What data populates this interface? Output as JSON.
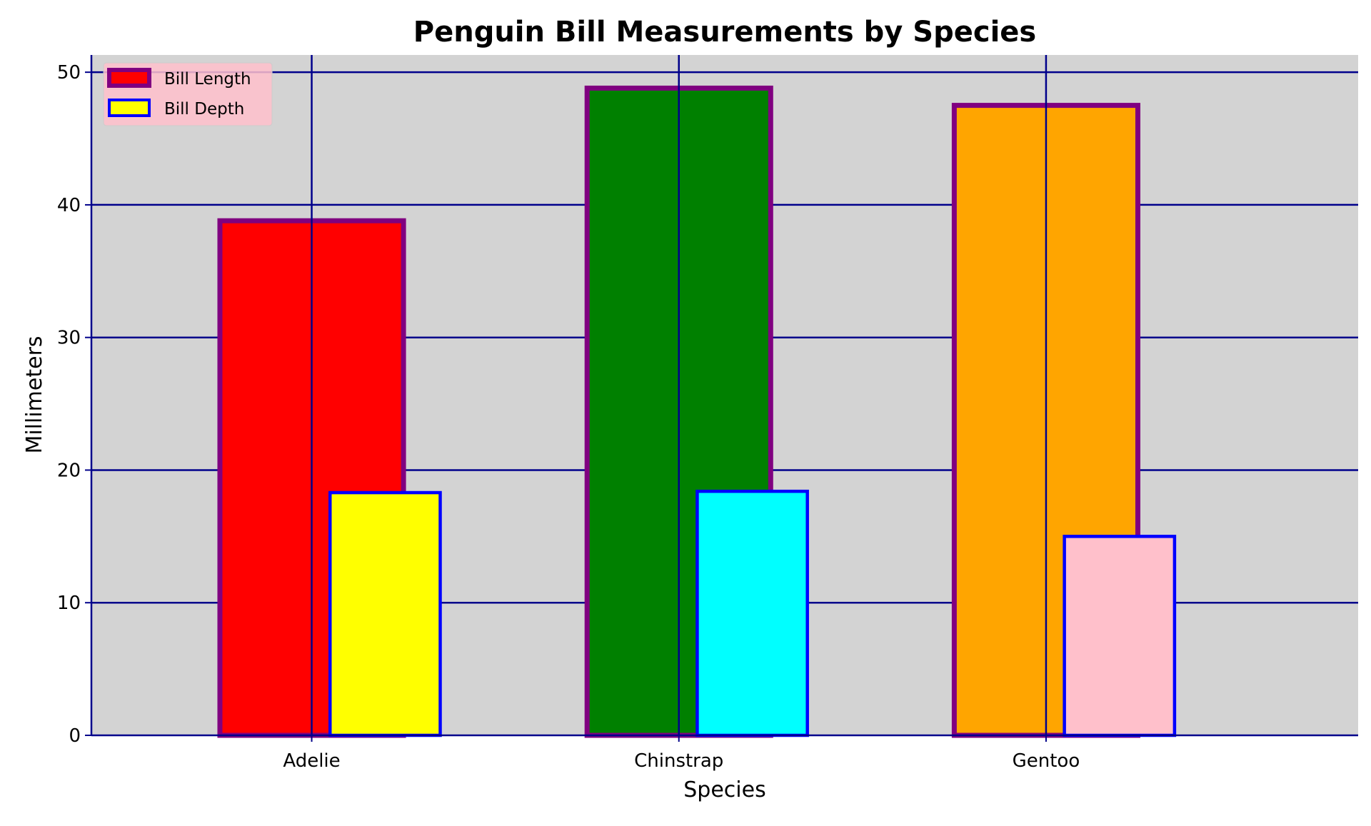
{
  "chart_data": {
    "type": "bar",
    "title": "Penguin Bill Measurements by Species",
    "xlabel": "Species",
    "ylabel": "Millimeters",
    "categories": [
      "Adelie",
      "Chinstrap",
      "Gentoo"
    ],
    "ylim": [
      0,
      51.3
    ],
    "yticks": [
      "0",
      "10",
      "20",
      "30",
      "40",
      "50"
    ],
    "grid": true,
    "legend_position": "top-left",
    "series": [
      {
        "name": "Bill Length",
        "values": [
          38.8,
          48.8,
          47.5
        ],
        "fill_colors": [
          "#ff0000",
          "#008000",
          "#ffa500"
        ],
        "edge_color": "#800080",
        "legend_fill": "#ff0000"
      },
      {
        "name": "Bill Depth",
        "values": [
          18.3,
          18.4,
          15.0
        ],
        "fill_colors": [
          "#ffff00",
          "#00ffff",
          "#ffc0cb"
        ],
        "edge_color": "#0000ff",
        "legend_fill": "#ffff00"
      }
    ],
    "colors": {
      "plot_background": "#d3d3d3",
      "grid": "#00008b",
      "axes": "#00008b",
      "legend_background": "#ffc0cb"
    }
  }
}
